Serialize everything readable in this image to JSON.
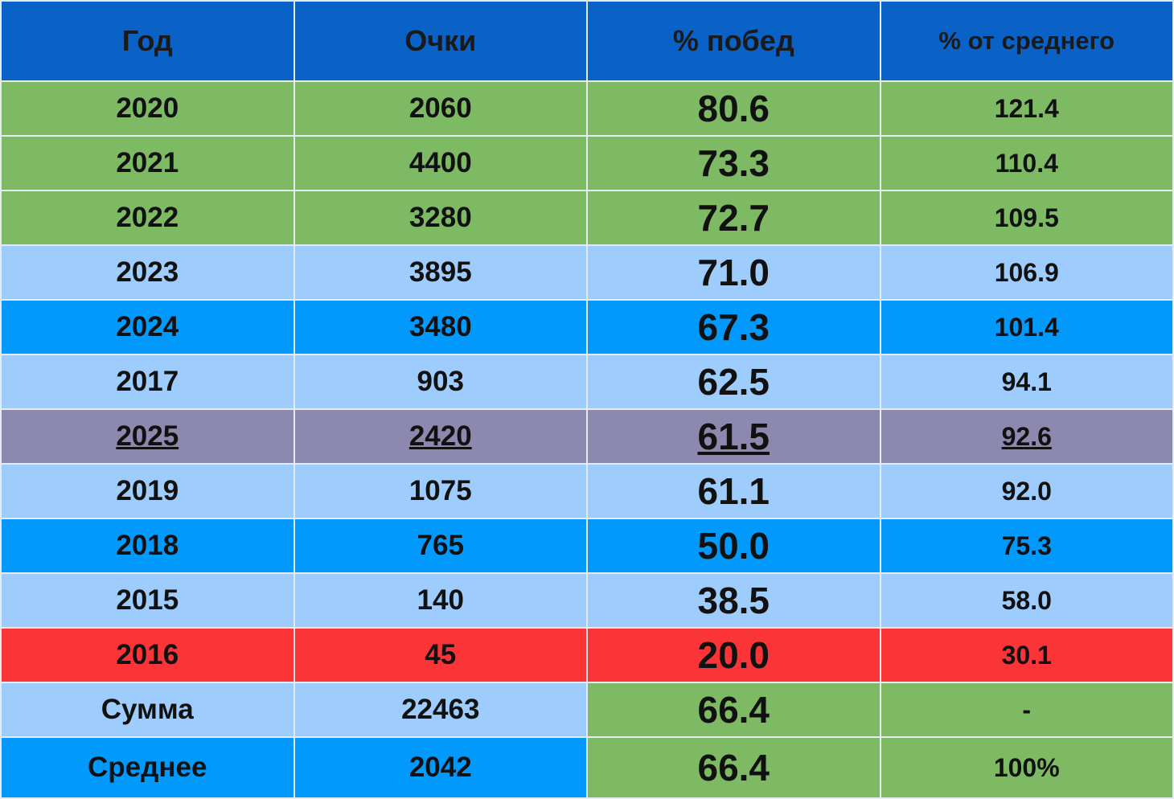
{
  "table": {
    "header": [
      "Год",
      "Очки",
      "% побед",
      "% от среднего"
    ],
    "rows": [
      [
        "2020",
        "2060",
        "80.6",
        "121.4"
      ],
      [
        "2021",
        "4400",
        "73.3",
        "110.4"
      ],
      [
        "2022",
        "3280",
        "72.7",
        "109.5"
      ],
      [
        "2023",
        "3895",
        "71.0",
        "106.9"
      ],
      [
        "2024",
        "3480",
        "67.3",
        "101.4"
      ],
      [
        "2017",
        "903",
        "62.5",
        "94.1"
      ],
      [
        "2025",
        "2420",
        "61.5",
        "92.6"
      ],
      [
        "2019",
        "1075",
        "61.1",
        "92.0"
      ],
      [
        "2018",
        "765",
        "50.0",
        "75.3"
      ],
      [
        "2015",
        "140",
        "38.5",
        "58.0"
      ],
      [
        "2016",
        "45",
        "20.0",
        "30.1"
      ],
      [
        "Сумма",
        "22463",
        "66.4",
        "-"
      ],
      [
        "Среднее",
        "2042",
        "66.4",
        "100%"
      ]
    ]
  }
}
